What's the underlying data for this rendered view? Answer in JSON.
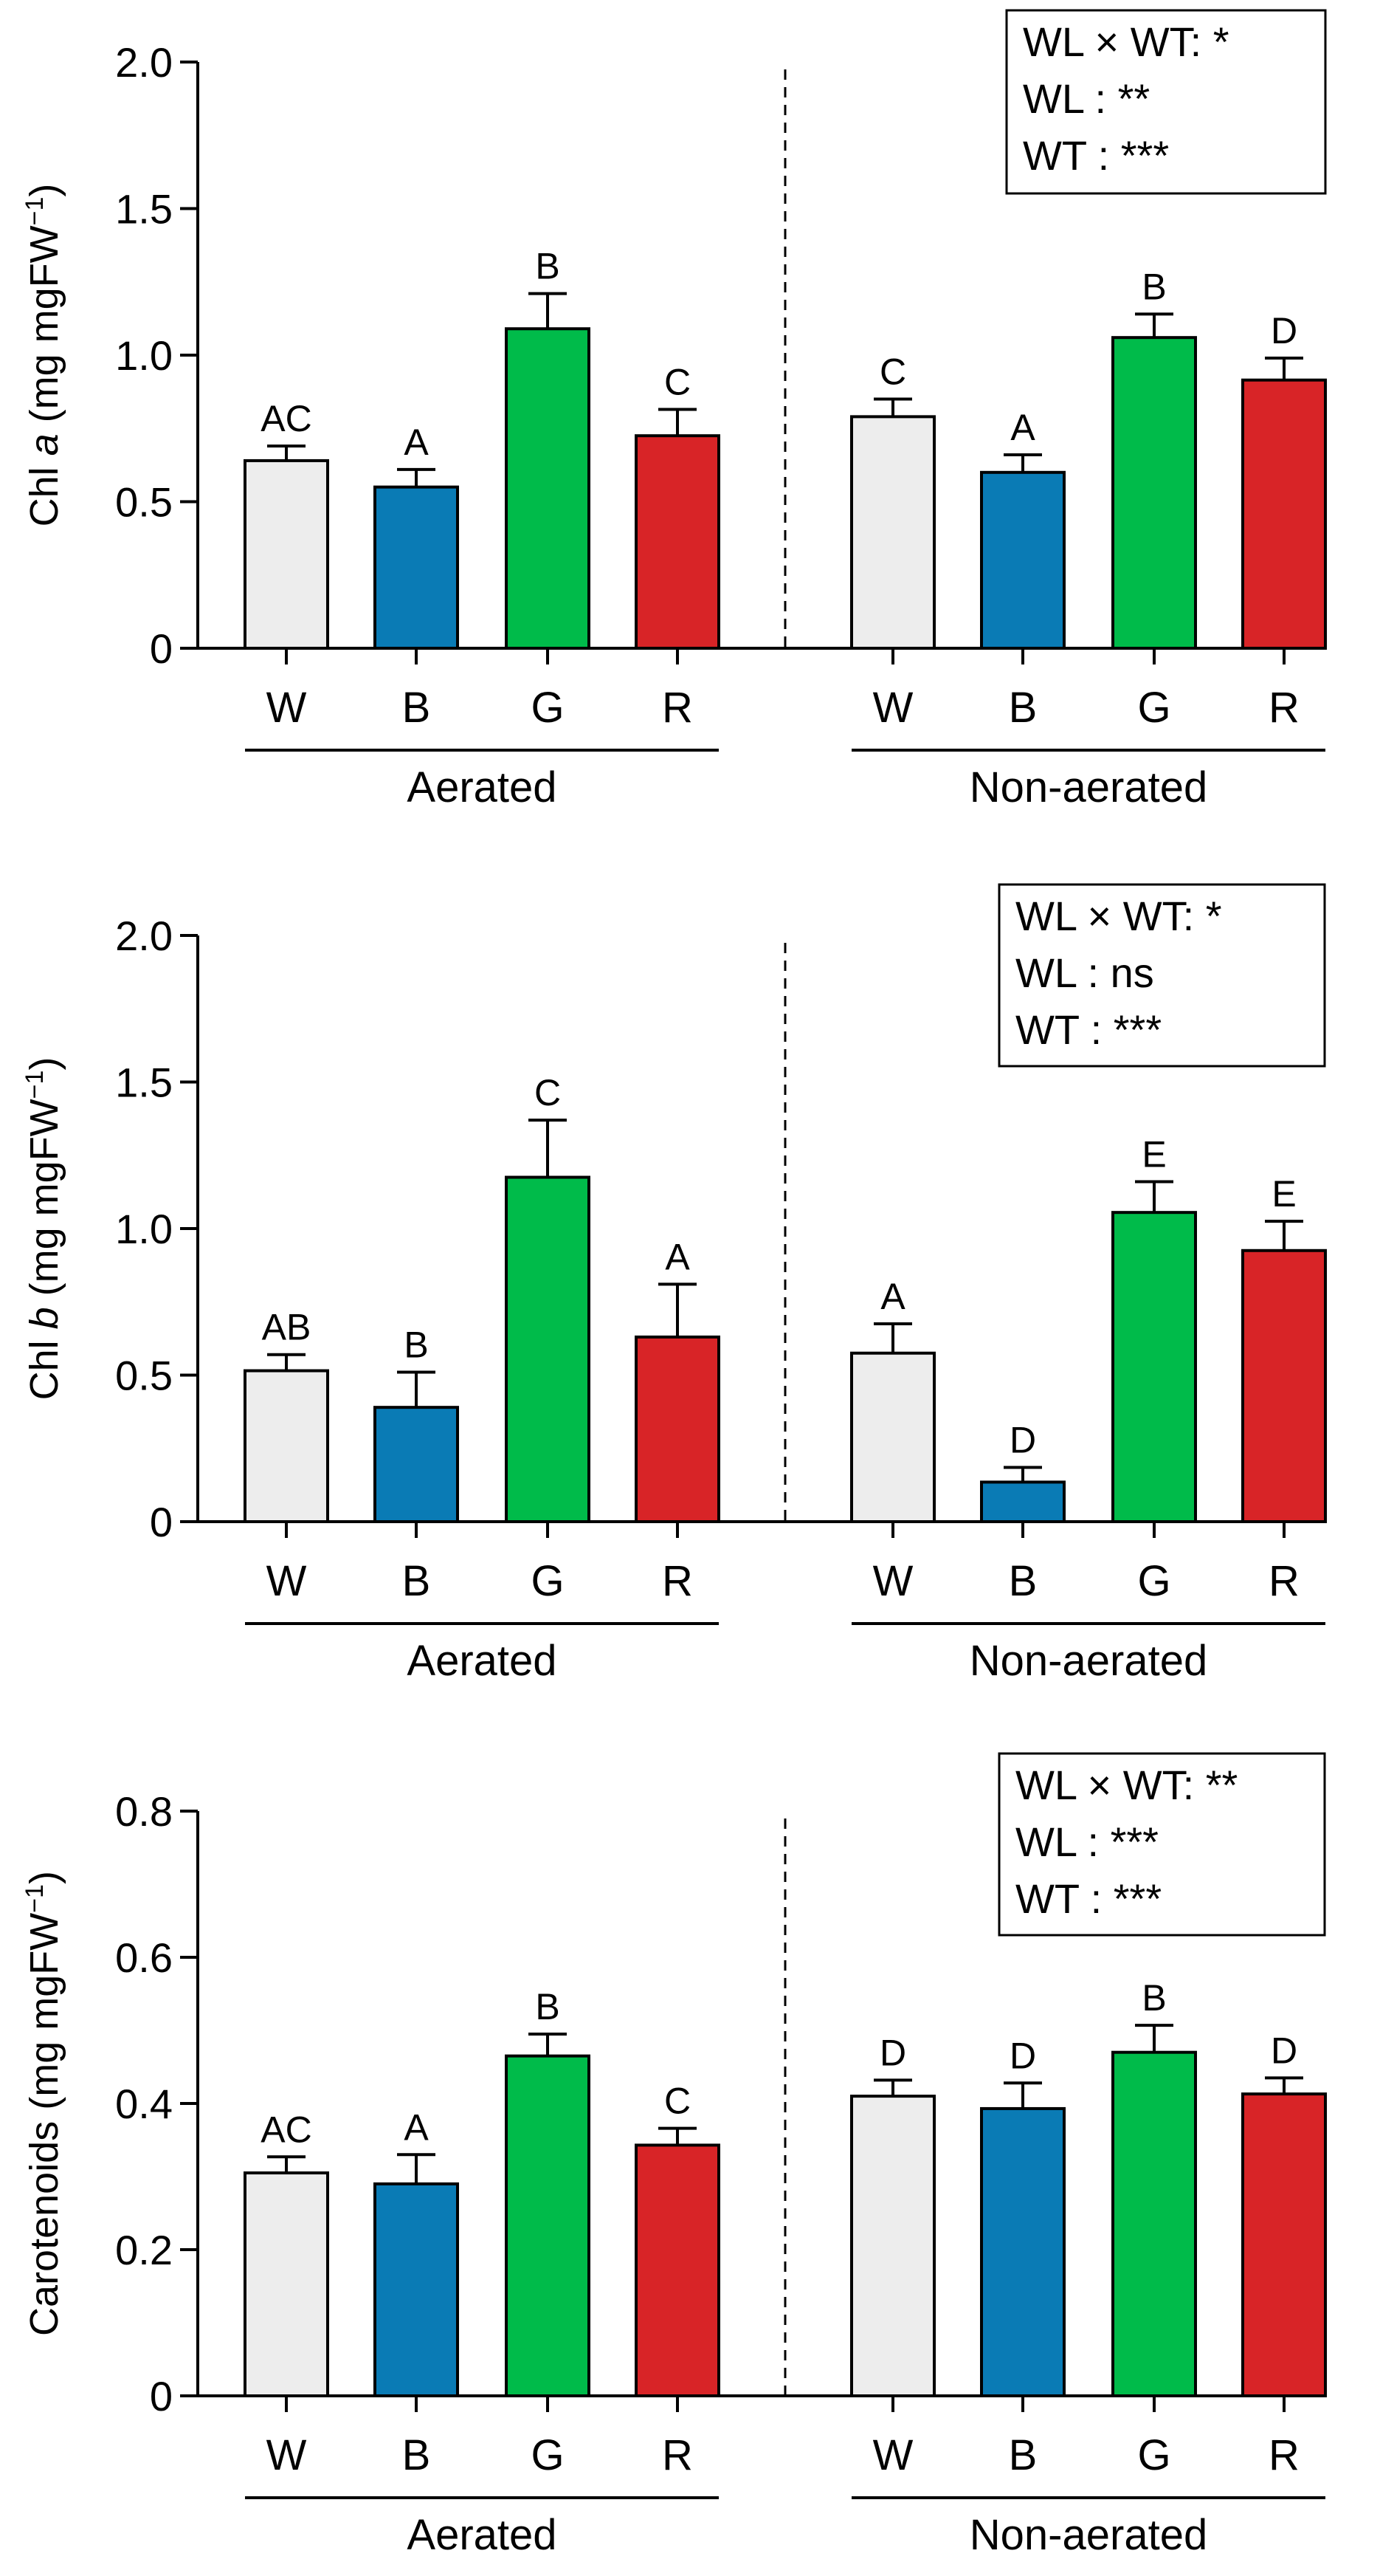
{
  "chart_data": [
    {
      "type": "bar",
      "panel": "top",
      "ylabel_main": "Chl ",
      "ylabel_ital": "a",
      "ylabel_unit": " (mg mgFW",
      "ylabel_sup": "−1",
      "ylabel_close": ")",
      "ylim": [
        0,
        2.0
      ],
      "yticks": [
        {
          "value": 0,
          "label": "0"
        },
        {
          "value": 0.5,
          "label": "0.5"
        },
        {
          "value": 1.0,
          "label": "1.0"
        },
        {
          "value": 1.5,
          "label": "1.5"
        },
        {
          "value": 2.0,
          "label": "2.0"
        }
      ],
      "groups": [
        {
          "label": "Aerated",
          "bars": [
            {
              "category": "W",
              "color": "#EDEDED",
              "value": 0.64,
              "error": 0.05,
              "letter": "AC"
            },
            {
              "category": "B",
              "color": "#0A7BB5",
              "value": 0.55,
              "error": 0.06,
              "letter": "A"
            },
            {
              "category": "G",
              "color": "#00BB4A",
              "value": 1.09,
              "error": 0.12,
              "letter": "B"
            },
            {
              "category": "R",
              "color": "#D82427",
              "value": 0.725,
              "error": 0.09,
              "letter": "C"
            }
          ]
        },
        {
          "label": "Non-aerated",
          "bars": [
            {
              "category": "W",
              "color": "#EDEDED",
              "value": 0.79,
              "error": 0.06,
              "letter": "C"
            },
            {
              "category": "B",
              "color": "#0A7BB5",
              "value": 0.6,
              "error": 0.06,
              "letter": "A"
            },
            {
              "category": "G",
              "color": "#00BB4A",
              "value": 1.06,
              "error": 0.08,
              "letter": "B"
            },
            {
              "category": "R",
              "color": "#D82427",
              "value": 0.915,
              "error": 0.075,
              "letter": "D"
            }
          ]
        }
      ],
      "stats": [
        "WL × WT: *",
        "WL : **",
        "WT : ***"
      ]
    },
    {
      "type": "bar",
      "panel": "middle",
      "ylabel_main": "Chl ",
      "ylabel_ital": "b",
      "ylabel_unit": " (mg mgFW",
      "ylabel_sup": "−1",
      "ylabel_close": ")",
      "ylim": [
        0,
        2.0
      ],
      "yticks": [
        {
          "value": 0,
          "label": "0"
        },
        {
          "value": 0.5,
          "label": "0.5"
        },
        {
          "value": 1.0,
          "label": "1.0"
        },
        {
          "value": 1.5,
          "label": "1.5"
        },
        {
          "value": 2.0,
          "label": "2.0"
        }
      ],
      "groups": [
        {
          "label": "Aerated",
          "bars": [
            {
              "category": "W",
              "color": "#EDEDED",
              "value": 0.515,
              "error": 0.055,
              "letter": "AB"
            },
            {
              "category": "B",
              "color": "#0A7BB5",
              "value": 0.39,
              "error": 0.12,
              "letter": "B"
            },
            {
              "category": "G",
              "color": "#00BB4A",
              "value": 1.175,
              "error": 0.195,
              "letter": "C"
            },
            {
              "category": "R",
              "color": "#D82427",
              "value": 0.63,
              "error": 0.18,
              "letter": "A"
            }
          ]
        },
        {
          "label": "Non-aerated",
          "bars": [
            {
              "category": "W",
              "color": "#EDEDED",
              "value": 0.575,
              "error": 0.1,
              "letter": "A"
            },
            {
              "category": "B",
              "color": "#0A7BB5",
              "value": 0.135,
              "error": 0.05,
              "letter": "D"
            },
            {
              "category": "G",
              "color": "#00BB4A",
              "value": 1.055,
              "error": 0.105,
              "letter": "E"
            },
            {
              "category": "R",
              "color": "#D82427",
              "value": 0.925,
              "error": 0.1,
              "letter": "E"
            }
          ]
        }
      ],
      "stats": [
        "WL × WT: *",
        "WL : ns",
        "WT : ***"
      ]
    },
    {
      "type": "bar",
      "panel": "bottom",
      "ylabel_main": "Carotenoids",
      "ylabel_ital": "",
      "ylabel_unit": " (mg mgFW",
      "ylabel_sup": "−1",
      "ylabel_close": ")",
      "ylim": [
        0,
        0.8
      ],
      "yticks": [
        {
          "value": 0,
          "label": "0"
        },
        {
          "value": 0.2,
          "label": "0.2"
        },
        {
          "value": 0.4,
          "label": "0.4"
        },
        {
          "value": 0.6,
          "label": "0.6"
        },
        {
          "value": 0.8,
          "label": "0.8"
        }
      ],
      "groups": [
        {
          "label": "Aerated",
          "bars": [
            {
              "category": "W",
              "color": "#EDEDED",
              "value": 0.305,
              "error": 0.022,
              "letter": "AC"
            },
            {
              "category": "B",
              "color": "#0A7BB5",
              "value": 0.29,
              "error": 0.04,
              "letter": "A"
            },
            {
              "category": "G",
              "color": "#00BB4A",
              "value": 0.465,
              "error": 0.03,
              "letter": "B"
            },
            {
              "category": "R",
              "color": "#D82427",
              "value": 0.343,
              "error": 0.023,
              "letter": "C"
            }
          ]
        },
        {
          "label": "Non-aerated",
          "bars": [
            {
              "category": "W",
              "color": "#EDEDED",
              "value": 0.41,
              "error": 0.022,
              "letter": "D"
            },
            {
              "category": "B",
              "color": "#0A7BB5",
              "value": 0.393,
              "error": 0.035,
              "letter": "D"
            },
            {
              "category": "G",
              "color": "#00BB4A",
              "value": 0.47,
              "error": 0.037,
              "letter": "B"
            },
            {
              "category": "R",
              "color": "#D82427",
              "value": 0.413,
              "error": 0.022,
              "letter": "D"
            }
          ]
        }
      ],
      "stats": [
        "WL × WT: **",
        "WL : ***",
        "WT : ***"
      ]
    }
  ]
}
